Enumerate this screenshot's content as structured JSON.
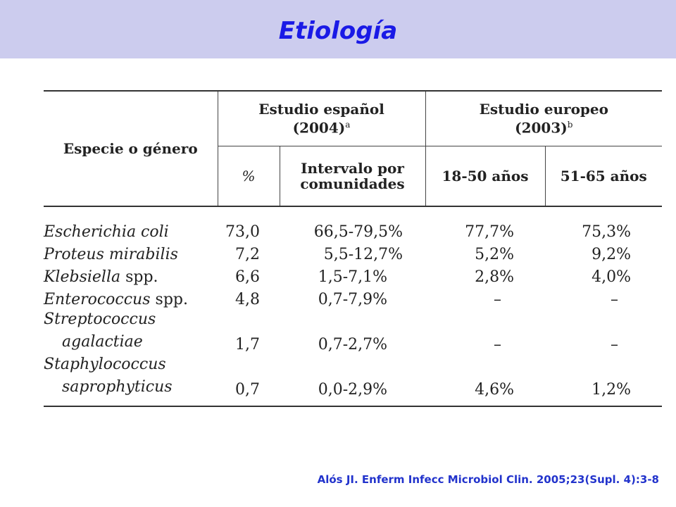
{
  "title": "Etiología",
  "table": {
    "col_species": "Especie o género",
    "group_spanish_title": "Estudio español",
    "group_spanish_year": "(2004)",
    "group_spanish_sup": "a",
    "group_european_title": "Estudio europeo",
    "group_european_year": "(2003)",
    "group_european_sup": "b",
    "sub_pct": "%",
    "sub_interval_1": "Intervalo por",
    "sub_interval_2": "comunidades",
    "sub_age1": "18-50 años",
    "sub_age2": "51-65 años",
    "rows": [
      {
        "species_a": "Escherichia coli",
        "species_b": "",
        "pct": "73,0",
        "interval": "66,5-79,5%",
        "eu1": "77,7%",
        "eu2": "75,3%"
      },
      {
        "species_a": "Proteus mirabilis",
        "species_b": "",
        "pct": "7,2",
        "interval": "5,5-12,7%",
        "eu1": "5,2%",
        "eu2": "9,2%"
      },
      {
        "species_a": "Klebsiella",
        "species_b": " spp.",
        "pct": "6,6",
        "interval": "1,5-7,1%",
        "eu1": "2,8%",
        "eu2": "4,0%"
      },
      {
        "species_a": "Enterococcus",
        "species_b": " spp.",
        "pct": "4,8",
        "interval": "0,7-7,9%",
        "eu1": "–",
        "eu2": "–"
      },
      {
        "species_a": "Streptococcus",
        "species_b": "agalactiae",
        "pct": "1,7",
        "interval": "0,7-2,7%",
        "eu1": "–",
        "eu2": "–"
      },
      {
        "species_a": "Staphylococcus",
        "species_b": "saprophyticus",
        "pct": "0,7",
        "interval": "0,0-2,9%",
        "eu1": "4,6%",
        "eu2": "1,2%"
      }
    ]
  },
  "reference": "Alós JI. Enferm Infecc Microbiol Clin. 2005;23(Supl. 4):3-8"
}
